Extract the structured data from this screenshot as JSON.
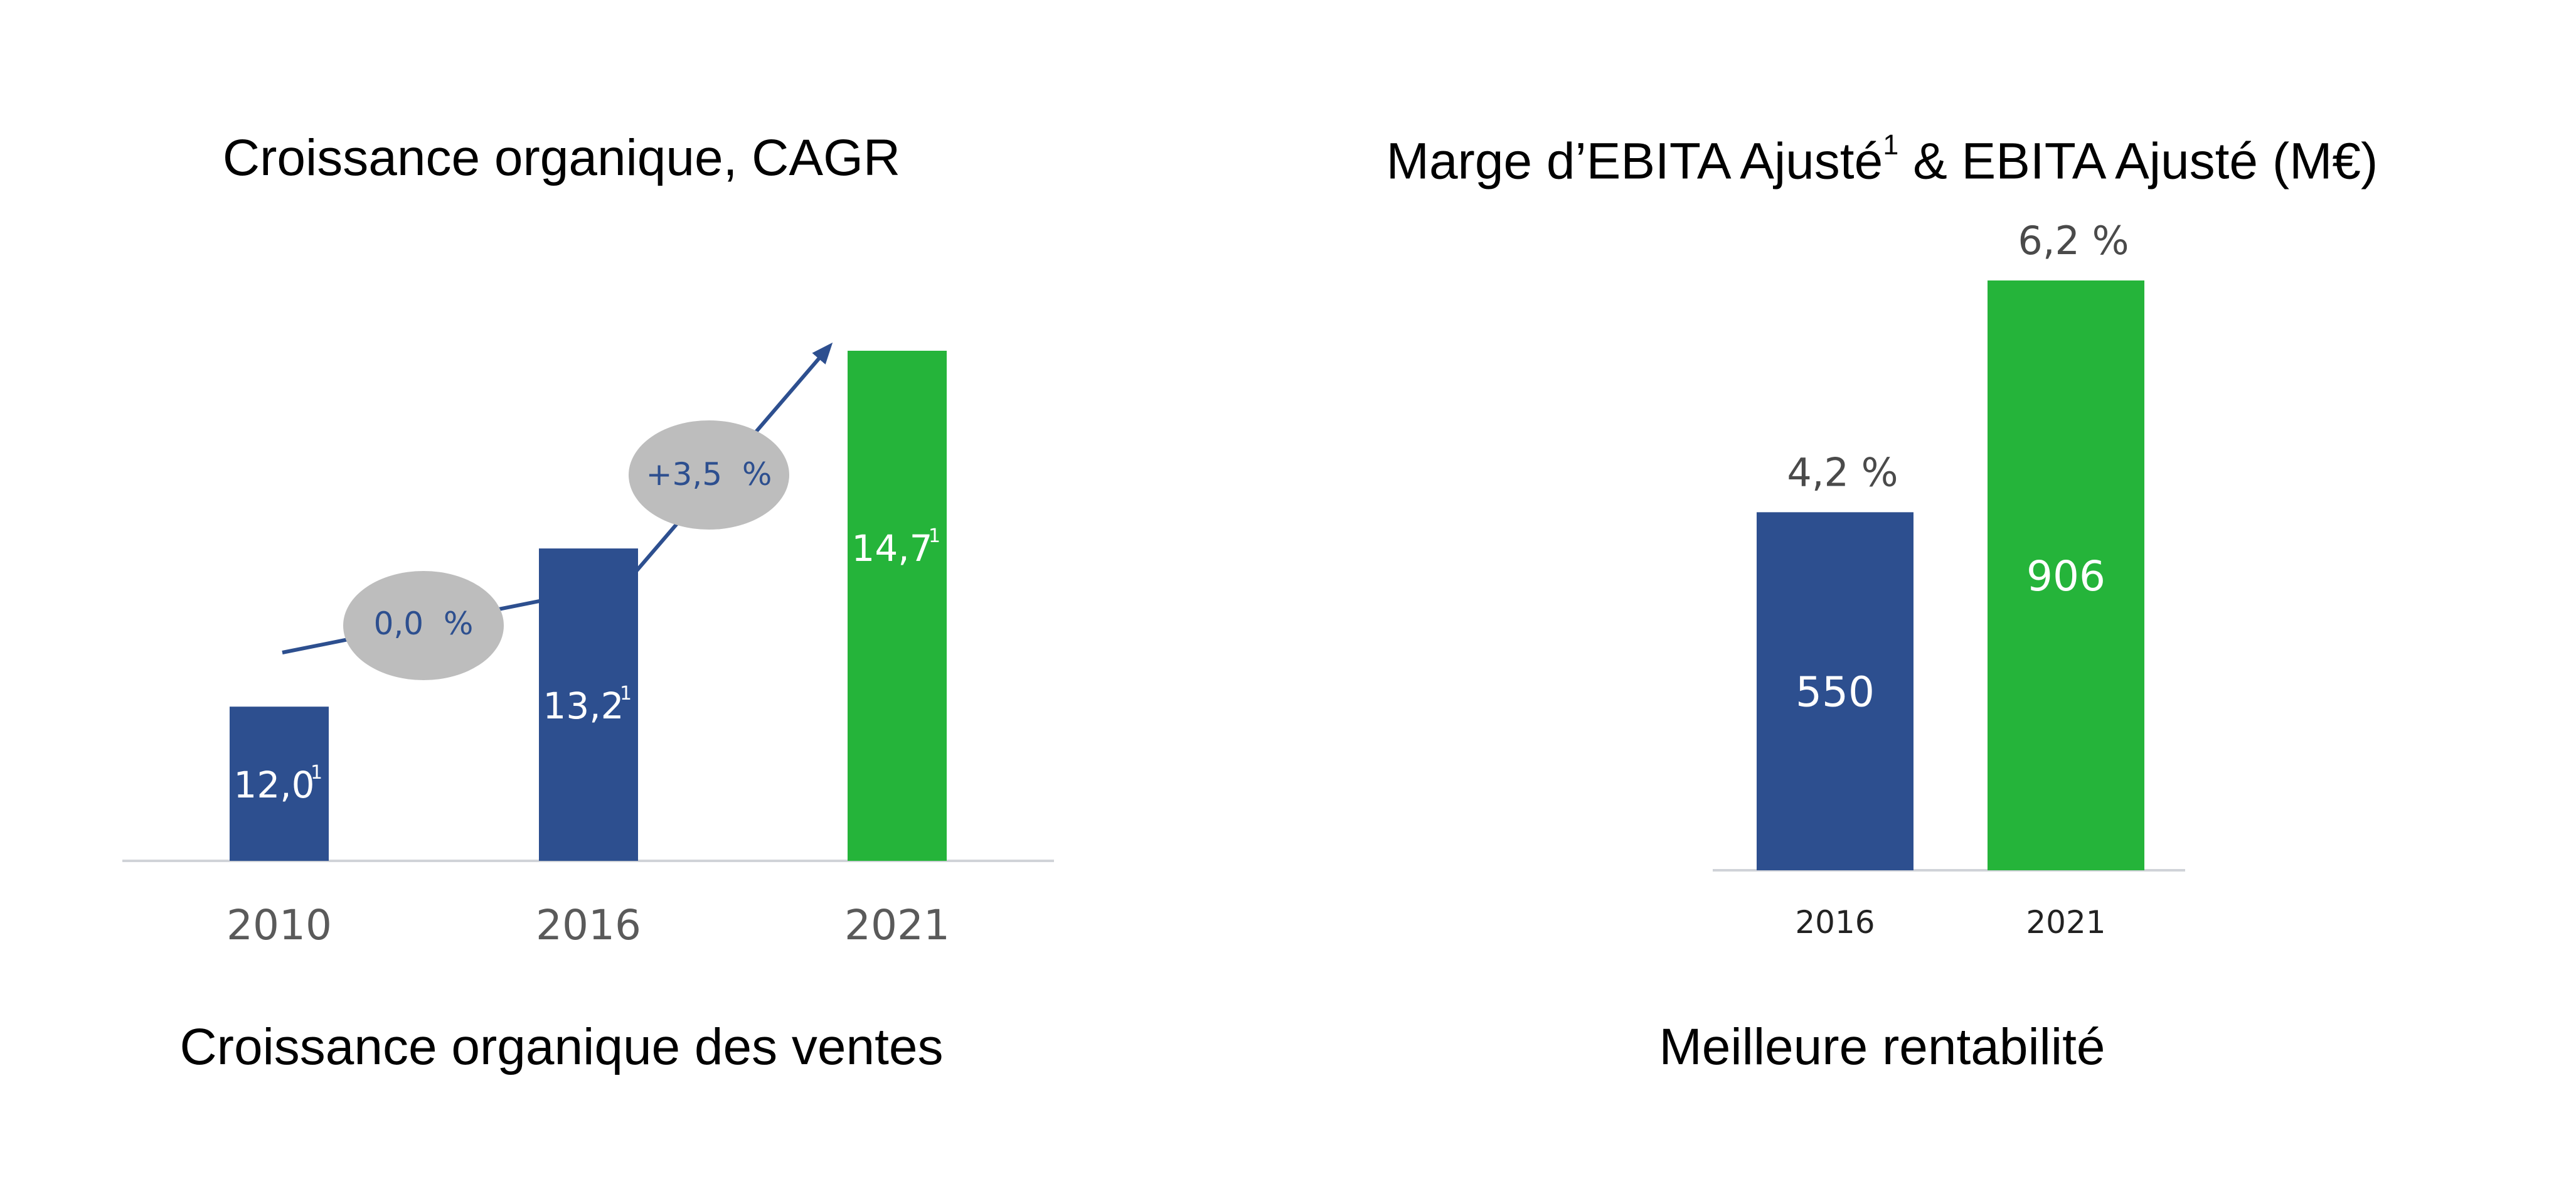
{
  "chart_data": [
    {
      "type": "bar",
      "title": "Croissance organique, CAGR",
      "caption": "Croissance organique des ventes",
      "categories": [
        "2010",
        "2016",
        "2021"
      ],
      "values": [
        12.0,
        13.2,
        14.7
      ],
      "value_labels": [
        "12,0",
        "13,2",
        "14,7"
      ],
      "footnote_mark": "1",
      "bar_colors": [
        "#2d4f8f",
        "#2d4f8f",
        "#25b43a"
      ],
      "cagr_labels": [
        "0,0  %",
        "+3,5  %"
      ],
      "grid": false,
      "legend": "none"
    },
    {
      "type": "bar",
      "title_main": "Marge d’EBITA Ajusté",
      "title_sup": "1",
      "title_rest": " & EBITA Ajusté (M€)",
      "caption": "Meilleure rentabilité",
      "categories": [
        "2016",
        "2021"
      ],
      "values": [
        550,
        906
      ],
      "value_labels": [
        "550",
        "906"
      ],
      "margin_labels": [
        "4,2 %",
        "6,2 %"
      ],
      "margins": [
        4.2,
        6.2
      ],
      "bar_colors": [
        "#2d4f8f",
        "#25b43a"
      ],
      "grid": false,
      "legend": "none"
    }
  ],
  "colors": {
    "blue": "#2d4f8f",
    "green": "#25b43a",
    "bubble": "#bdbdbd",
    "axis": "#d0d3d8",
    "tick_text": "#5a5a5a"
  }
}
